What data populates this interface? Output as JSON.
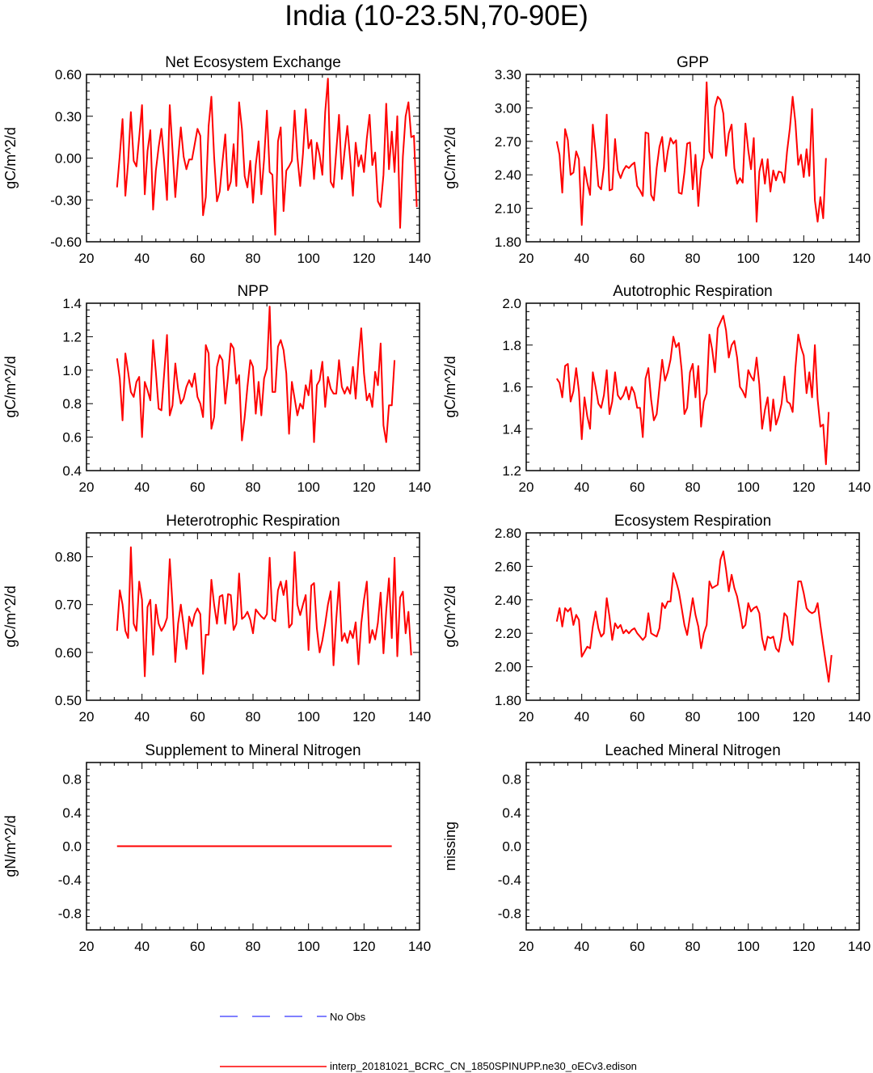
{
  "title": "India (10-23.5N,70-90E)",
  "colors": {
    "model": "#ff0000",
    "obs": "#0000ff",
    "axis": "#000000"
  },
  "chart_data": [
    {
      "type": "line",
      "title": "Net Ecosystem Exchange",
      "ylabel": "gC/m^2/d",
      "xlim": [
        20,
        140
      ],
      "ylim": [
        -0.6,
        0.6
      ],
      "xticks": [
        20,
        40,
        60,
        80,
        100,
        120,
        140
      ],
      "yticks": [
        -0.6,
        -0.3,
        0.0,
        0.3,
        0.6
      ],
      "ytick_labels": [
        "-0.60",
        "-0.30",
        "0.00",
        "0.30",
        "0.60"
      ],
      "x_start": 31,
      "values": [
        -0.21,
        0.02,
        0.28,
        -0.27,
        -0.03,
        0.33,
        -0.02,
        -0.06,
        0.15,
        0.38,
        -0.26,
        0.05,
        0.2,
        -0.37,
        -0.09,
        0.08,
        0.21,
        -0.02,
        -0.3,
        0.38,
        0.06,
        -0.28,
        -0.01,
        0.22,
        0.01,
        -0.08,
        -0.01,
        -0.01,
        0.1,
        0.21,
        0.16,
        -0.41,
        -0.28,
        0.23,
        0.44,
        0.01,
        -0.31,
        -0.24,
        -0.03,
        0.17,
        -0.23,
        -0.17,
        0.1,
        -0.2,
        0.4,
        0.21,
        -0.13,
        -0.21,
        -0.02,
        -0.32,
        -0.05,
        0.12,
        -0.26,
        -0.01,
        0.34,
        -0.1,
        -0.12,
        -0.55,
        0.12,
        0.22,
        -0.38,
        -0.09,
        -0.06,
        -0.02,
        0.34,
        0.01,
        -0.2,
        0.03,
        0.35,
        0.07,
        0.13,
        -0.15,
        0.11,
        0.02,
        -0.12,
        0.33,
        0.57,
        -0.17,
        -0.21,
        0.05,
        0.31,
        -0.15,
        0.05,
        0.23,
        -0.01,
        -0.27,
        0.11,
        -0.06,
        0.02,
        -0.1,
        0.14,
        0.31,
        -0.05,
        0.04,
        -0.31,
        -0.35,
        -0.12,
        0.39,
        -0.08,
        0.19,
        -0.1,
        0.3,
        -0.5,
        0.01,
        0.3,
        0.4,
        0.15,
        0.16,
        -0.35
      ]
    },
    {
      "type": "line",
      "title": "GPP",
      "ylabel": "gC/m^2/d",
      "xlim": [
        20,
        140
      ],
      "ylim": [
        1.8,
        3.3
      ],
      "xticks": [
        20,
        40,
        60,
        80,
        100,
        120,
        140
      ],
      "yticks": [
        1.8,
        2.1,
        2.4,
        2.7,
        3.0,
        3.3
      ],
      "ytick_labels": [
        "1.80",
        "2.10",
        "2.40",
        "2.70",
        "3.00",
        "3.30"
      ],
      "x_start": 31,
      "values": [
        2.7,
        2.58,
        2.24,
        2.81,
        2.71,
        2.4,
        2.42,
        2.61,
        2.54,
        1.95,
        2.47,
        2.33,
        2.22,
        2.85,
        2.6,
        2.3,
        2.27,
        2.47,
        2.94,
        2.26,
        2.27,
        2.72,
        2.44,
        2.37,
        2.44,
        2.48,
        2.46,
        2.49,
        2.51,
        2.3,
        2.26,
        2.21,
        2.78,
        2.77,
        2.22,
        2.17,
        2.46,
        2.65,
        2.74,
        2.43,
        2.61,
        2.73,
        2.68,
        2.71,
        2.24,
        2.23,
        2.42,
        2.68,
        2.69,
        2.27,
        2.58,
        2.12,
        2.45,
        2.55,
        3.23,
        2.61,
        2.55,
        3.01,
        3.1,
        3.07,
        2.95,
        2.57,
        2.77,
        2.85,
        2.46,
        2.32,
        2.37,
        2.33,
        2.86,
        2.62,
        2.45,
        2.73,
        1.98,
        2.43,
        2.54,
        2.32,
        2.54,
        2.25,
        2.44,
        2.35,
        2.43,
        2.42,
        2.33,
        2.61,
        2.82,
        3.1,
        2.87,
        2.49,
        2.58,
        2.38,
        2.63,
        2.39,
        2.99,
        2.17,
        1.98,
        2.2,
        2.01,
        2.55
      ]
    },
    {
      "type": "line",
      "title": "NPP",
      "ylabel": "gC/m^2/d",
      "xlim": [
        20,
        140
      ],
      "ylim": [
        0.4,
        1.4
      ],
      "xticks": [
        20,
        40,
        60,
        80,
        100,
        120,
        140
      ],
      "yticks": [
        0.4,
        0.6,
        0.8,
        1.0,
        1.2,
        1.4
      ],
      "ytick_labels": [
        "0.4",
        "0.6",
        "0.8",
        "1.0",
        "1.2",
        "1.4"
      ],
      "x_start": 31,
      "values": [
        1.07,
        0.95,
        0.7,
        1.1,
        0.99,
        0.87,
        0.84,
        0.93,
        0.96,
        0.6,
        0.93,
        0.88,
        0.82,
        1.18,
        0.99,
        0.77,
        0.76,
        0.98,
        1.21,
        0.73,
        0.79,
        1.04,
        0.89,
        0.8,
        0.83,
        0.9,
        0.94,
        0.9,
        0.98,
        0.84,
        0.8,
        0.72,
        1.15,
        1.1,
        0.65,
        0.72,
        1.02,
        1.09,
        1.06,
        0.8,
        0.96,
        1.16,
        1.13,
        0.92,
        0.97,
        0.58,
        0.72,
        0.9,
        1.06,
        1.02,
        0.74,
        0.93,
        0.73,
        0.95,
        1.01,
        1.38,
        0.87,
        0.87,
        1.14,
        1.18,
        1.12,
        0.98,
        0.62,
        0.93,
        0.83,
        0.73,
        0.8,
        0.77,
        0.91,
        0.85,
        1.0,
        0.57,
        0.91,
        0.94,
        1.05,
        0.78,
        0.96,
        0.89,
        0.86,
        0.86,
        1.06,
        0.9,
        0.86,
        0.9,
        0.86,
        1.02,
        0.83,
        1.07,
        1.25,
        0.98,
        0.82,
        0.86,
        0.78,
        0.99,
        0.91,
        1.16,
        0.67,
        0.57,
        0.79,
        0.79,
        1.06
      ]
    },
    {
      "type": "line",
      "title": "Autotrophic Respiration",
      "ylabel": "gC/m^2/d",
      "xlim": [
        20,
        140
      ],
      "ylim": [
        1.2,
        2.0
      ],
      "xticks": [
        20,
        40,
        60,
        80,
        100,
        120,
        140
      ],
      "yticks": [
        1.2,
        1.4,
        1.6,
        1.8,
        2.0
      ],
      "ytick_labels": [
        "1.2",
        "1.4",
        "1.6",
        "1.8",
        "2.0"
      ],
      "x_start": 31,
      "values": [
        1.64,
        1.62,
        1.55,
        1.7,
        1.71,
        1.53,
        1.58,
        1.69,
        1.58,
        1.35,
        1.55,
        1.46,
        1.4,
        1.67,
        1.6,
        1.52,
        1.5,
        1.56,
        1.68,
        1.47,
        1.53,
        1.67,
        1.56,
        1.54,
        1.56,
        1.6,
        1.54,
        1.6,
        1.57,
        1.5,
        1.5,
        1.36,
        1.64,
        1.69,
        1.54,
        1.44,
        1.47,
        1.6,
        1.73,
        1.63,
        1.67,
        1.73,
        1.84,
        1.79,
        1.81,
        1.68,
        1.47,
        1.5,
        1.67,
        1.71,
        1.55,
        1.7,
        1.41,
        1.53,
        1.57,
        1.85,
        1.78,
        1.67,
        1.88,
        1.91,
        1.94,
        1.87,
        1.74,
        1.8,
        1.82,
        1.74,
        1.6,
        1.58,
        1.55,
        1.68,
        1.65,
        1.63,
        1.74,
        1.61,
        1.4,
        1.49,
        1.55,
        1.39,
        1.54,
        1.42,
        1.46,
        1.52,
        1.65,
        1.53,
        1.52,
        1.48,
        1.69,
        1.85,
        1.79,
        1.75,
        1.57,
        1.67,
        1.55,
        1.8,
        1.54,
        1.41,
        1.42,
        1.23,
        1.48
      ]
    },
    {
      "type": "line",
      "title": "Heterotrophic Respiration",
      "ylabel": "gC/m^2/d",
      "xlim": [
        20,
        140
      ],
      "ylim": [
        0.5,
        0.85
      ],
      "xticks": [
        20,
        40,
        60,
        80,
        100,
        120,
        140
      ],
      "yticks": [
        0.5,
        0.6,
        0.7,
        0.8
      ],
      "ytick_labels": [
        "0.50",
        "0.60",
        "0.70",
        "0.80"
      ],
      "x_start": 31,
      "values": [
        0.645,
        0.73,
        0.7,
        0.645,
        0.63,
        0.82,
        0.66,
        0.645,
        0.748,
        0.71,
        0.55,
        0.695,
        0.71,
        0.595,
        0.7,
        0.66,
        0.645,
        0.655,
        0.672,
        0.795,
        0.7,
        0.58,
        0.66,
        0.7,
        0.655,
        0.607,
        0.675,
        0.655,
        0.68,
        0.692,
        0.68,
        0.555,
        0.637,
        0.637,
        0.752,
        0.7,
        0.66,
        0.717,
        0.72,
        0.66,
        0.722,
        0.72,
        0.647,
        0.66,
        0.765,
        0.67,
        0.675,
        0.685,
        0.668,
        0.64,
        0.69,
        0.682,
        0.675,
        0.67,
        0.68,
        0.798,
        0.67,
        0.665,
        0.73,
        0.748,
        0.72,
        0.75,
        0.652,
        0.66,
        0.81,
        0.7,
        0.678,
        0.7,
        0.72,
        0.605,
        0.74,
        0.745,
        0.65,
        0.6,
        0.625,
        0.66,
        0.7,
        0.728,
        0.573,
        0.67,
        0.747,
        0.624,
        0.64,
        0.62,
        0.645,
        0.63,
        0.663,
        0.575,
        0.66,
        0.71,
        0.748,
        0.62,
        0.647,
        0.627,
        0.662,
        0.725,
        0.598,
        0.687,
        0.755,
        0.63,
        0.798,
        0.592,
        0.715,
        0.727,
        0.64,
        0.685,
        0.594
      ]
    },
    {
      "type": "line",
      "title": "Ecosystem Respiration",
      "ylabel": "gC/m^2/d",
      "xlim": [
        20,
        140
      ],
      "ylim": [
        1.8,
        2.8
      ],
      "xticks": [
        20,
        40,
        60,
        80,
        100,
        120,
        140
      ],
      "yticks": [
        1.8,
        2.0,
        2.2,
        2.4,
        2.6,
        2.8
      ],
      "ytick_labels": [
        "1.80",
        "2.00",
        "2.20",
        "2.40",
        "2.60",
        "2.80"
      ],
      "x_start": 31,
      "values": [
        2.27,
        2.35,
        2.24,
        2.35,
        2.33,
        2.35,
        2.25,
        2.31,
        2.28,
        2.06,
        2.09,
        2.12,
        2.11,
        2.24,
        2.33,
        2.23,
        2.18,
        2.2,
        2.41,
        2.3,
        2.16,
        2.26,
        2.23,
        2.25,
        2.2,
        2.22,
        2.2,
        2.22,
        2.23,
        2.2,
        2.18,
        2.16,
        2.18,
        2.32,
        2.2,
        2.19,
        2.18,
        2.23,
        2.38,
        2.35,
        2.39,
        2.39,
        2.56,
        2.51,
        2.45,
        2.35,
        2.25,
        2.19,
        2.3,
        2.41,
        2.31,
        2.24,
        2.11,
        2.2,
        2.25,
        2.51,
        2.47,
        2.48,
        2.49,
        2.64,
        2.69,
        2.58,
        2.45,
        2.55,
        2.47,
        2.42,
        2.33,
        2.23,
        2.25,
        2.38,
        2.33,
        2.35,
        2.36,
        2.32,
        2.17,
        2.1,
        2.18,
        2.17,
        2.18,
        2.11,
        2.09,
        2.18,
        2.32,
        2.3,
        2.16,
        2.13,
        2.32,
        2.51,
        2.51,
        2.44,
        2.35,
        2.33,
        2.32,
        2.33,
        2.38,
        2.25,
        2.13,
        2.02,
        1.91,
        2.07
      ]
    },
    {
      "type": "line",
      "title": "Supplement to Mineral Nitrogen",
      "ylabel": "gN/m^2/d",
      "xlim": [
        20,
        140
      ],
      "ylim": [
        -1.0,
        1.0
      ],
      "xticks": [
        20,
        40,
        60,
        80,
        100,
        120,
        140
      ],
      "yticks": [
        -0.8,
        -0.4,
        0.0,
        0.4,
        0.8
      ],
      "ytick_labels": [
        "-0.8",
        "-0.4",
        "0.0",
        "0.4",
        "0.8"
      ],
      "x_start": 31,
      "x_end": 130,
      "constant_value": 0.0
    },
    {
      "type": "line",
      "title": "Leached Mineral Nitrogen",
      "ylabel": "missing",
      "xlim": [
        20,
        140
      ],
      "ylim": [
        -1.0,
        1.0
      ],
      "xticks": [
        20,
        40,
        60,
        80,
        100,
        120,
        140
      ],
      "yticks": [
        -0.8,
        -0.4,
        0.0,
        0.4,
        0.8
      ],
      "ytick_labels": [
        "-0.8",
        "-0.4",
        "0.0",
        "0.4",
        "0.8"
      ],
      "values": []
    }
  ],
  "legend": {
    "obs_label": "No Obs",
    "model_label": "interp_20181021_BCRC_CN_1850SPINUPP.ne30_oECv3.edison"
  }
}
